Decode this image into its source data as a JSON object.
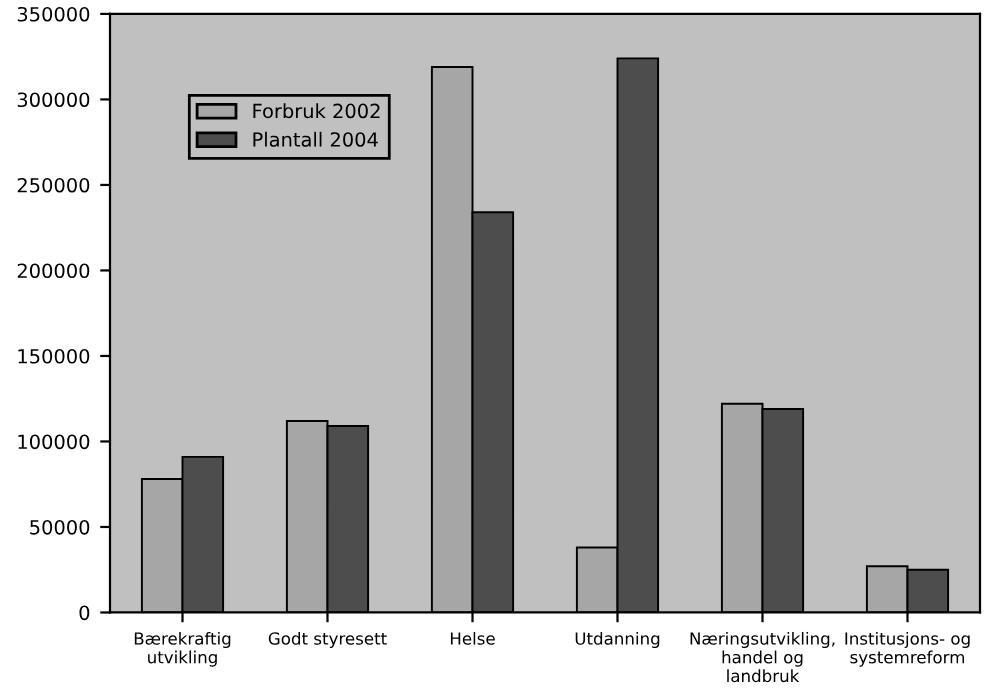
{
  "chart_data": {
    "type": "bar",
    "categories": [
      "Bærekraftig\nutvikling",
      "Godt styresett",
      "Helse",
      "Utdanning",
      "Næringsutvikling,\nhandel og\nlandbruk",
      "Institusjons- og\nsystemreform"
    ],
    "series": [
      {
        "name": "Forbruk 2002",
        "color": "#a6a6a6",
        "values": [
          78000,
          112000,
          319000,
          38000,
          122000,
          27000
        ]
      },
      {
        "name": "Plantall 2004",
        "color": "#4d4d4d",
        "values": [
          91000,
          109000,
          234000,
          324000,
          119000,
          25000
        ]
      }
    ],
    "ylim": [
      0,
      350000
    ],
    "yticks": [
      0,
      50000,
      100000,
      150000,
      200000,
      250000,
      300000,
      350000
    ],
    "grid": false,
    "legend": "top left"
  }
}
